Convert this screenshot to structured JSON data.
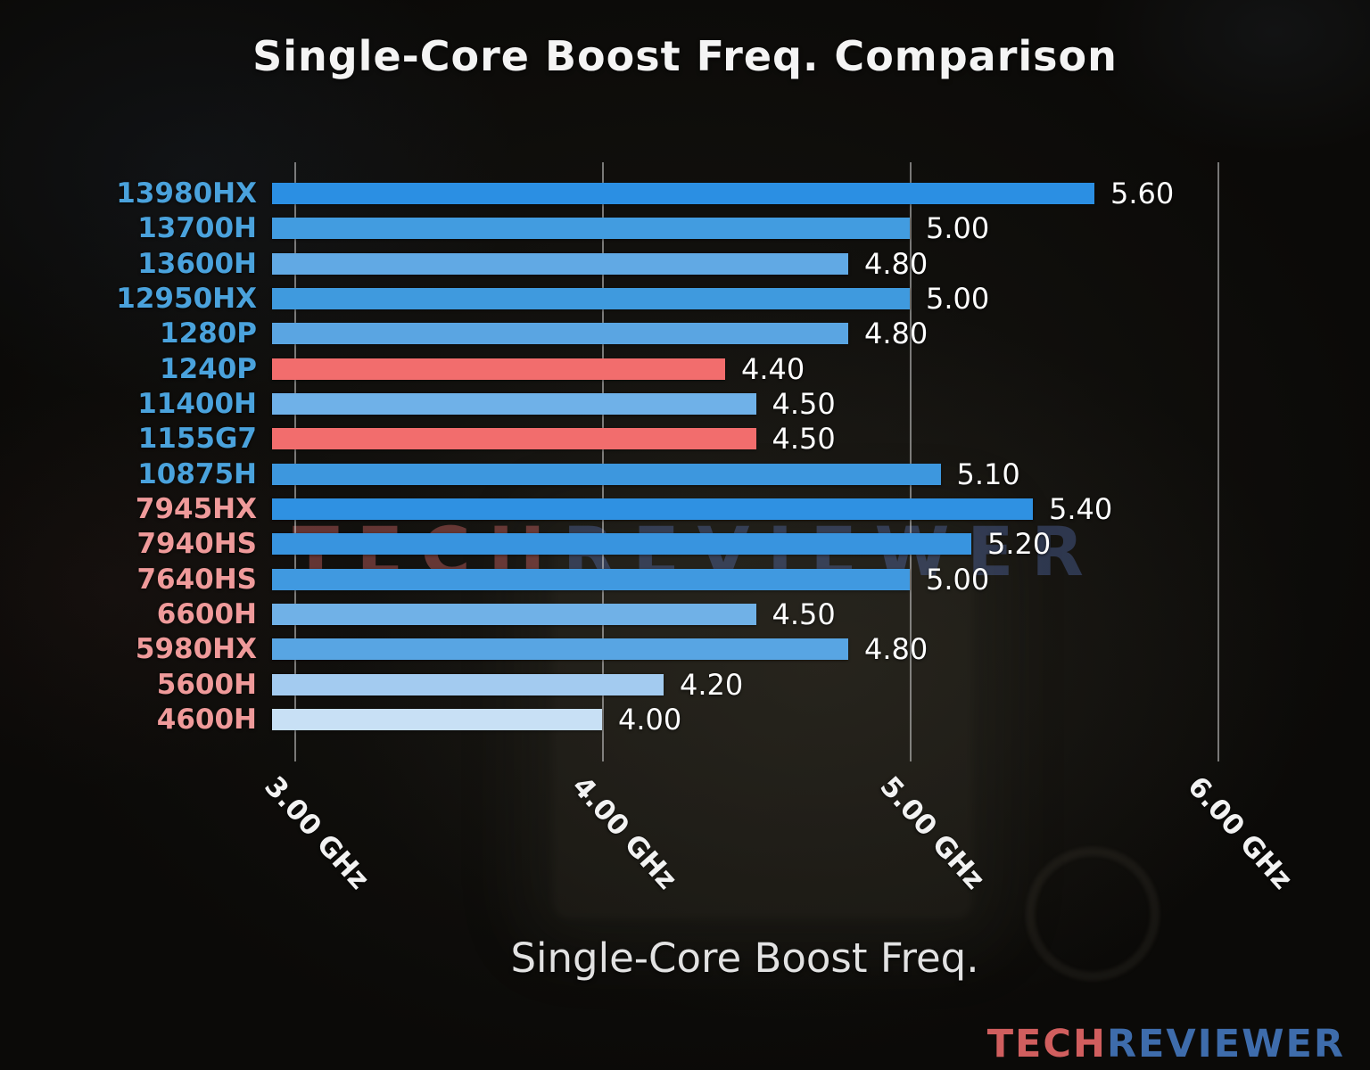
{
  "page": {
    "title": "Single-Core Boost Freq. Comparison",
    "axis_title": "Single-Core Boost Freq."
  },
  "watermark": {
    "tech": "TECH",
    "reviewer": "REVIEWER"
  },
  "logo": {
    "tech": "TECH",
    "reviewer": "REVIEWER"
  },
  "chart_data": {
    "type": "bar",
    "orientation": "horizontal",
    "title": "Single-Core Boost Freq. Comparison",
    "xlabel": "Single-Core Boost Freq.",
    "unit": "GHz",
    "xlim": [
      2.93,
      6.35
    ],
    "grid": true,
    "legend": "none",
    "x_ticks": [
      {
        "value": 3.0,
        "label": "3.00 GHz"
      },
      {
        "value": 4.0,
        "label": "4.00 GHz"
      },
      {
        "value": 5.0,
        "label": "5.00 GHz"
      },
      {
        "value": 6.0,
        "label": "6.00 GHz"
      }
    ],
    "categories": [
      "13980HX",
      "13700H",
      "13600H",
      "12950HX",
      "1280P",
      "1240P",
      "11400H",
      "1155G7",
      "10875H",
      "7945HX",
      "7940HS",
      "7640HS",
      "6600H",
      "5980HX",
      "5600H",
      "4600H"
    ],
    "values": [
      5.6,
      5.0,
      4.8,
      5.0,
      4.8,
      4.4,
      4.5,
      4.5,
      5.1,
      5.4,
      5.2,
      5.0,
      4.5,
      4.8,
      4.2,
      4.0
    ],
    "value_labels": [
      "5.60",
      "5.00",
      "4.80",
      "5.00",
      "4.80",
      "4.40",
      "4.50",
      "4.50",
      "5.10",
      "5.40",
      "5.20",
      "5.00",
      "4.50",
      "4.80",
      "4.20",
      "4.00"
    ],
    "bar_colors": [
      "#2b8fe3",
      "#429ce0",
      "#61a9e4",
      "#3f9ade",
      "#5aa5e2",
      "#f26d6d",
      "#6fb1e8",
      "#f26d6d",
      "#3d97de",
      "#2f91e2",
      "#3894df",
      "#4099e0",
      "#70b1e7",
      "#58a5e3",
      "#a3cbf0",
      "#c8e0f5"
    ],
    "label_colors": [
      "#4aa2dc",
      "#4aa2dc",
      "#4aa2dc",
      "#4aa2dc",
      "#4aa2dc",
      "#4aa2dc",
      "#4aa2dc",
      "#4aa2dc",
      "#4aa2dc",
      "#ef9a9a",
      "#ef9a9a",
      "#ef9a9a",
      "#ef9a9a",
      "#ef9a9a",
      "#ef9a9a",
      "#ef9a9a"
    ],
    "accent_colors": {
      "intel_label": "#4aa2dc",
      "amd_label": "#ef9a9a",
      "highlight_bar": "#f26d6d",
      "value_text": "#ffffff"
    }
  }
}
